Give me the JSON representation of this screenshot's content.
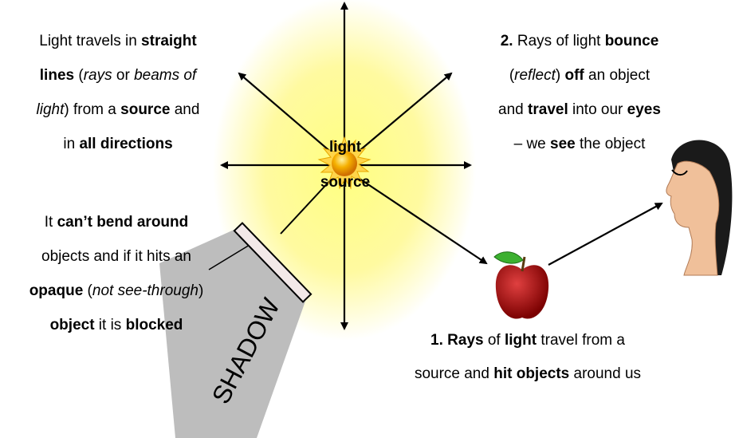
{
  "blocks": [
    {
      "lines": [
        [
          {
            "text": "Light travels in "
          },
          {
            "text": "straight",
            "b": true
          }
        ],
        [
          {
            "text": "lines",
            "b": true
          },
          {
            "text": " ("
          },
          {
            "text": "rays",
            "i": true
          },
          {
            "text": " or "
          },
          {
            "text": "beams of",
            "i": true
          }
        ],
        [
          {
            "text": "light",
            "i": true
          },
          {
            "text": ") from a "
          },
          {
            "text": "source",
            "b": true
          },
          {
            "text": " and"
          }
        ],
        [
          {
            "text": "in "
          },
          {
            "text": "all directions",
            "b": true
          }
        ]
      ]
    },
    {
      "lines": [
        [
          {
            "text": "It "
          },
          {
            "text": "can’t bend around",
            "b": true
          }
        ],
        [
          {
            "text": "objects and if it hits an"
          }
        ],
        [
          {
            "text": "opaque",
            "b": true
          },
          {
            "text": " ("
          },
          {
            "text": "not see-through",
            "i": true
          },
          {
            "text": ")"
          }
        ],
        [
          {
            "text": "object",
            "b": true
          },
          {
            "text": " it is "
          },
          {
            "text": "blocked",
            "b": true
          }
        ]
      ]
    },
    {
      "lines": [
        [
          {
            "text": "2.",
            "b": true
          },
          {
            "text": " Rays of light "
          },
          {
            "text": "bounce",
            "b": true
          }
        ],
        [
          {
            "text": "("
          },
          {
            "text": "reflect",
            "i": true
          },
          {
            "text": ") "
          },
          {
            "text": "off",
            "b": true
          },
          {
            "text": " an object"
          }
        ],
        [
          {
            "text": "and "
          },
          {
            "text": "travel",
            "b": true
          },
          {
            "text": " into our "
          },
          {
            "text": "eyes",
            "b": true
          }
        ],
        [
          {
            "text": "– we "
          },
          {
            "text": "see",
            "b": true
          },
          {
            "text": " the object"
          }
        ]
      ]
    },
    {
      "lines": [
        [
          {
            "text": "1. Rays",
            "b": true
          },
          {
            "text": " of "
          },
          {
            "text": "light",
            "b": true
          },
          {
            "text": " travel from a"
          }
        ],
        [
          {
            "text": "source and "
          },
          {
            "text": "hit objects",
            "b": true
          },
          {
            "text": " around us"
          }
        ]
      ]
    }
  ],
  "sun_label": [
    "light",
    "source"
  ],
  "shadow_label": "SHADOW"
}
